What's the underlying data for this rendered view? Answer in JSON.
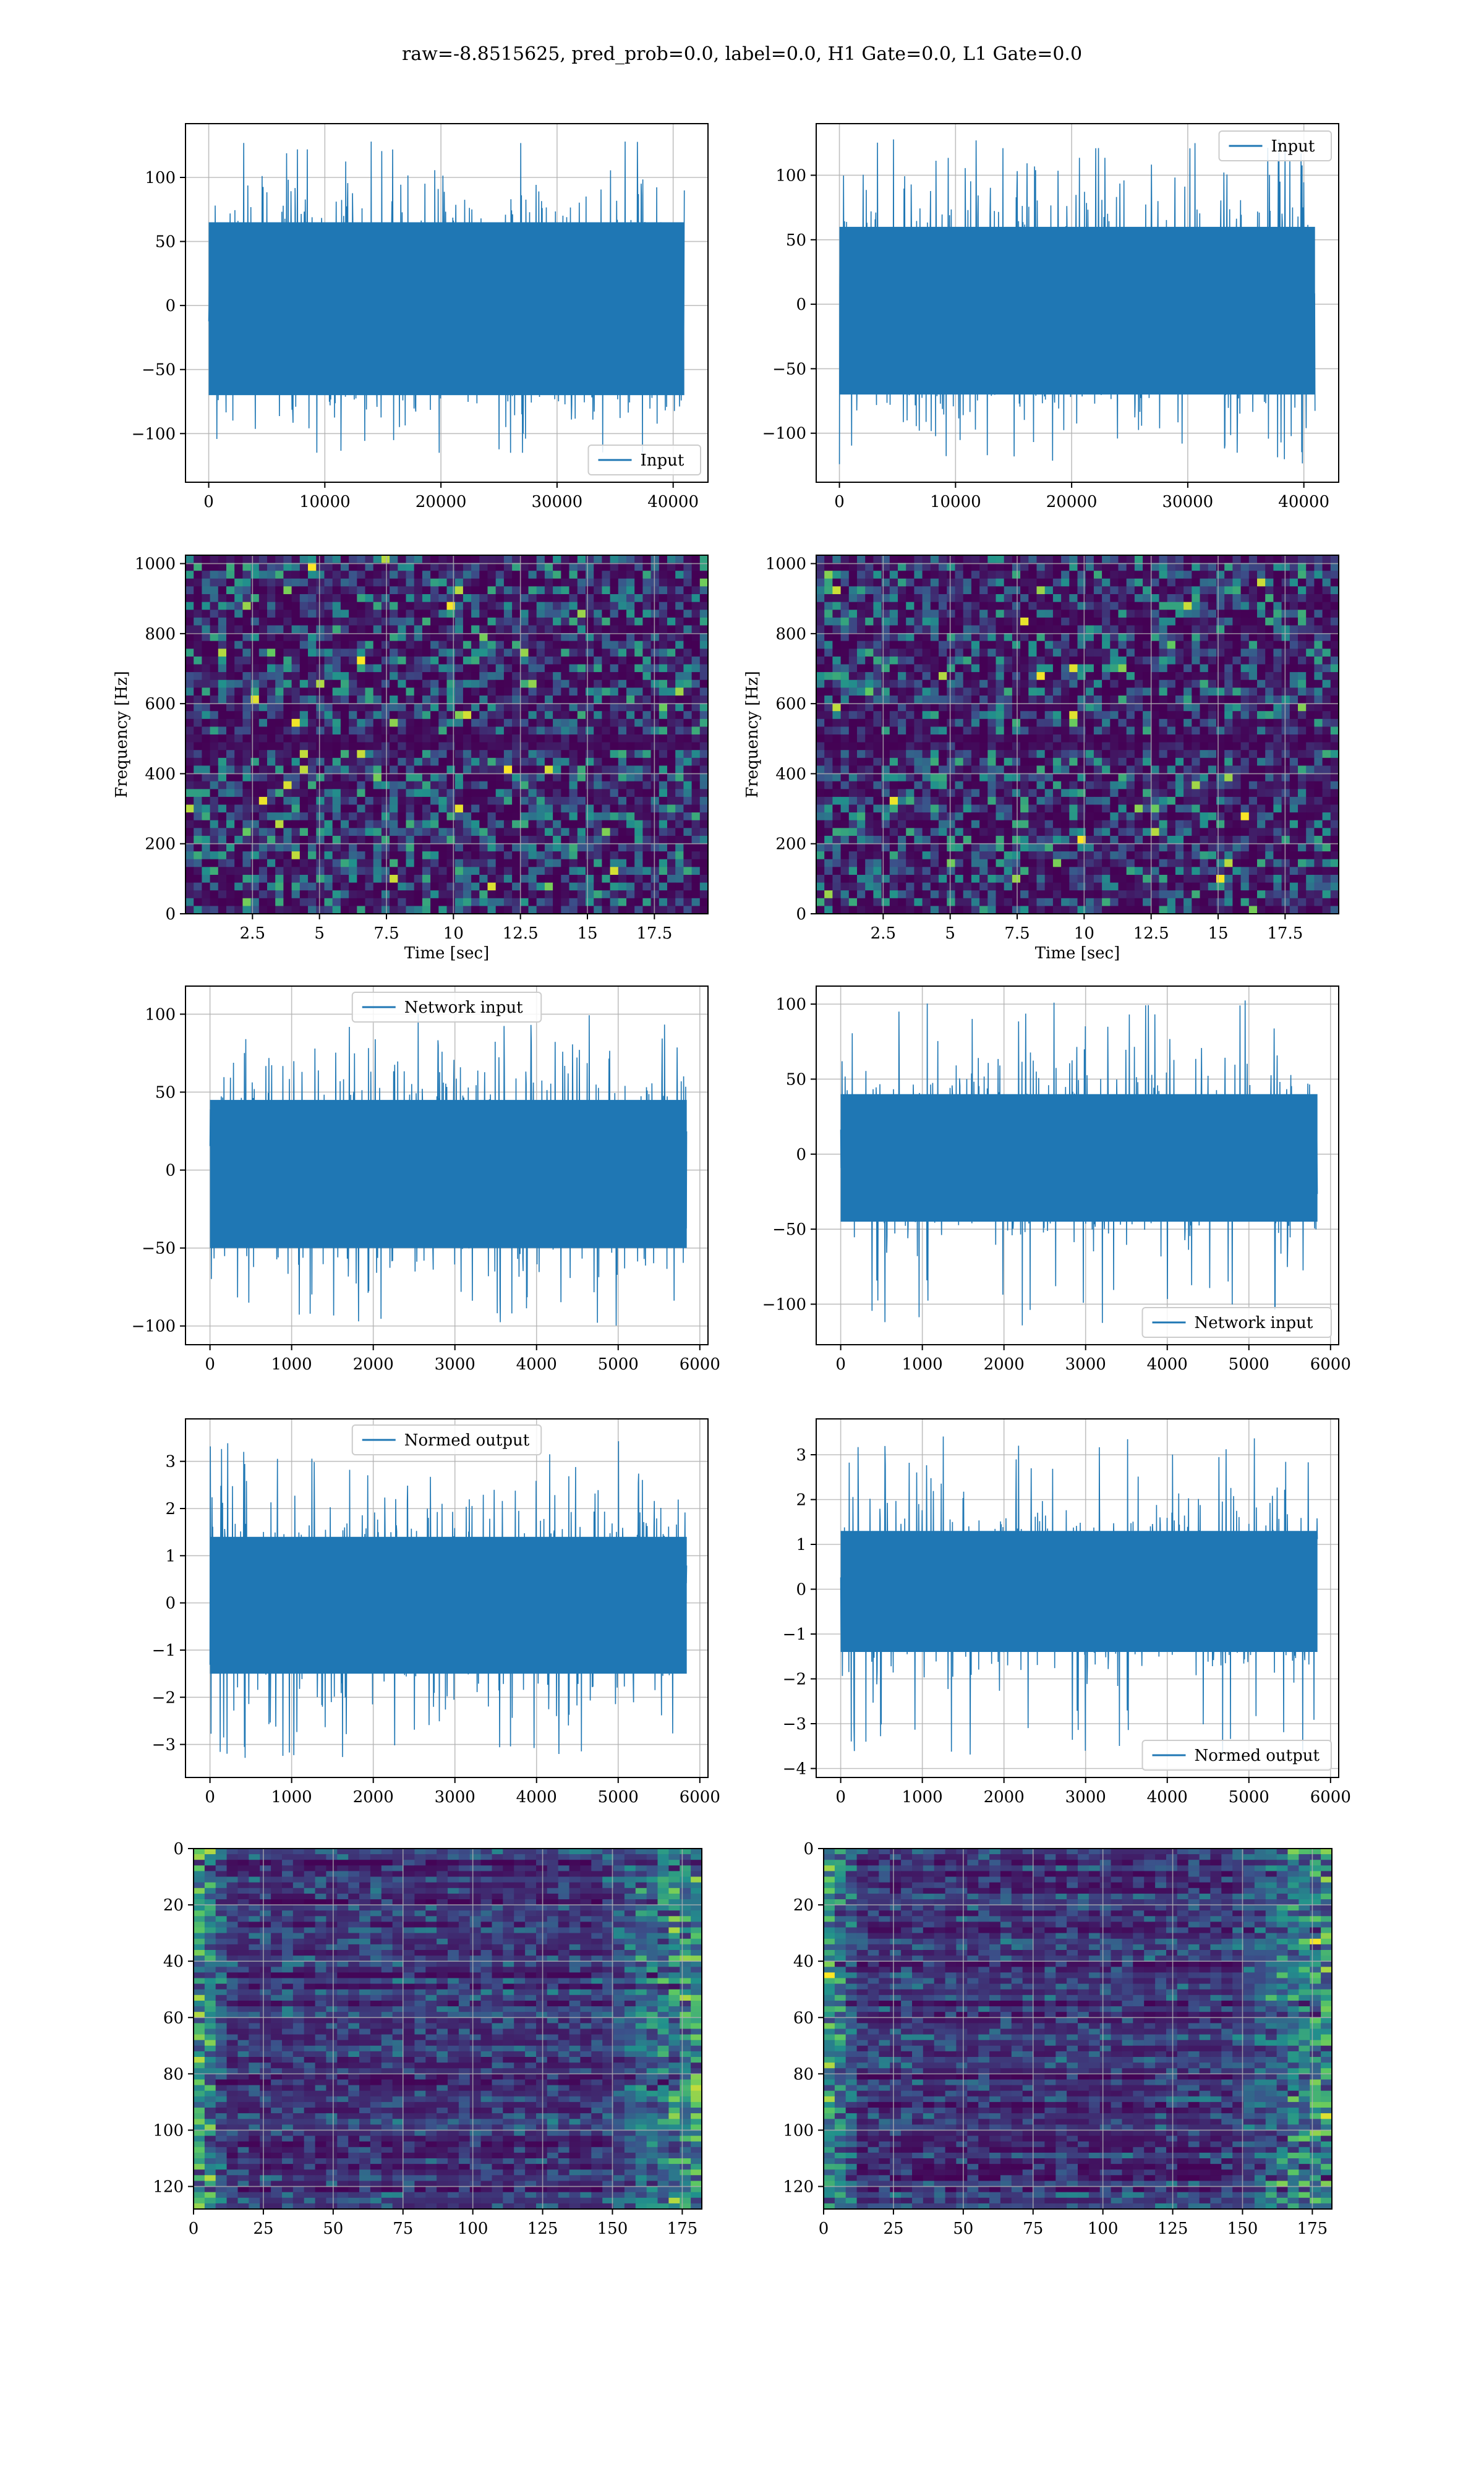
{
  "title": "raw=-8.8515625, pred_prob=0.0, label=0.0, H1 Gate=0.0, L1 Gate=0.0",
  "colors": {
    "line": "#1f77b4",
    "viridis_low": "#440154",
    "viridis_mid": "#21918c",
    "viridis_high": "#fde725",
    "grid": "#b0b0b0"
  },
  "chart_data": [
    {
      "id": "input-h1",
      "type": "line",
      "series": [
        {
          "name": "Input",
          "envelope_hi": 65,
          "envelope_lo": -70,
          "spike_max": 128,
          "spike_min": -115
        }
      ],
      "xlim": [
        -2000,
        43000
      ],
      "ylim": [
        -138,
        142
      ],
      "xticks": [
        0,
        10000,
        20000,
        30000,
        40000
      ],
      "yticks": [
        -100,
        -50,
        0,
        50,
        100
      ],
      "n_samples": 40960,
      "legend": "lower-right",
      "grid": true
    },
    {
      "id": "input-l1",
      "type": "line",
      "series": [
        {
          "name": "Input",
          "envelope_hi": 60,
          "envelope_lo": -70,
          "spike_max": 128,
          "spike_min": -124
        }
      ],
      "xlim": [
        -2000,
        43000
      ],
      "ylim": [
        -138,
        140
      ],
      "xticks": [
        0,
        10000,
        20000,
        30000,
        40000
      ],
      "yticks": [
        -100,
        -50,
        0,
        50,
        100
      ],
      "n_samples": 40960,
      "legend": "upper-right",
      "grid": true
    },
    {
      "id": "spectrogram-h1",
      "type": "heatmap",
      "xlabel": "Time [sec]",
      "ylabel": "Frequency [Hz]",
      "xlim": [
        0,
        19.5
      ],
      "ylim": [
        0,
        1024
      ],
      "xticks": [
        2.5,
        5.0,
        7.5,
        10.0,
        12.5,
        15.0,
        17.5
      ],
      "yticks": [
        0,
        200,
        400,
        600,
        800,
        1000
      ],
      "colormap": "viridis",
      "dark_band_hz": [
        470,
        510
      ],
      "grid": true
    },
    {
      "id": "spectrogram-l1",
      "type": "heatmap",
      "xlabel": "Time [sec]",
      "ylabel": "Frequency [Hz]",
      "xlim": [
        0,
        19.5
      ],
      "ylim": [
        0,
        1024
      ],
      "xticks": [
        2.5,
        5.0,
        7.5,
        10.0,
        12.5,
        15.0,
        17.5
      ],
      "yticks": [
        0,
        200,
        400,
        600,
        800,
        1000
      ],
      "colormap": "viridis",
      "dark_band_hz": [
        470,
        510
      ],
      "grid": true
    },
    {
      "id": "network-input-h1",
      "type": "line",
      "series": [
        {
          "name": "Network input",
          "envelope_hi": 45,
          "envelope_lo": -50,
          "spike_max": 102,
          "spike_min": -100
        }
      ],
      "xlim": [
        -300,
        6100
      ],
      "ylim": [
        -112,
        118
      ],
      "xticks": [
        0,
        1000,
        2000,
        3000,
        4000,
        5000,
        6000
      ],
      "yticks": [
        -100,
        -50,
        0,
        50,
        100
      ],
      "n_samples": 5840,
      "legend": "upper-center",
      "grid": true
    },
    {
      "id": "network-input-l1",
      "type": "line",
      "series": [
        {
          "name": "Network input",
          "envelope_hi": 40,
          "envelope_lo": -45,
          "spike_max": 105,
          "spike_min": -115
        }
      ],
      "xlim": [
        -300,
        6100
      ],
      "ylim": [
        -127,
        112
      ],
      "xticks": [
        0,
        1000,
        2000,
        3000,
        4000,
        5000,
        6000
      ],
      "yticks": [
        -100,
        -50,
        0,
        50,
        100
      ],
      "n_samples": 5840,
      "legend": "lower-right",
      "grid": true
    },
    {
      "id": "normed-output-h1",
      "type": "line",
      "series": [
        {
          "name": "Normed output",
          "envelope_hi": 1.4,
          "envelope_lo": -1.5,
          "spike_max": 3.5,
          "spike_min": -3.3
        }
      ],
      "xlim": [
        -300,
        6100
      ],
      "ylim": [
        -3.7,
        3.9
      ],
      "xticks": [
        0,
        1000,
        2000,
        3000,
        4000,
        5000,
        6000
      ],
      "yticks": [
        -3,
        -2,
        -1,
        0,
        1,
        2,
        3
      ],
      "n_samples": 5840,
      "legend": "upper-center",
      "grid": true
    },
    {
      "id": "normed-output-l1",
      "type": "line",
      "series": [
        {
          "name": "Normed output",
          "envelope_hi": 1.3,
          "envelope_lo": -1.4,
          "spike_max": 3.5,
          "spike_min": -3.7
        }
      ],
      "xlim": [
        -300,
        6100
      ],
      "ylim": [
        -4.2,
        3.8
      ],
      "xticks": [
        0,
        1000,
        2000,
        3000,
        4000,
        5000,
        6000
      ],
      "yticks": [
        -4,
        -3,
        -2,
        -1,
        0,
        1,
        2,
        3
      ],
      "n_samples": 5840,
      "legend": "lower-right",
      "grid": true
    },
    {
      "id": "feature-map-h1",
      "type": "heatmap",
      "xlim": [
        0,
        182
      ],
      "ylim": [
        128,
        0
      ],
      "xticks": [
        0,
        25,
        50,
        75,
        100,
        125,
        150,
        175
      ],
      "yticks": [
        0,
        20,
        40,
        60,
        80,
        100,
        120
      ],
      "colormap": "viridis",
      "rows": 128,
      "cols": 182,
      "grid": true
    },
    {
      "id": "feature-map-l1",
      "type": "heatmap",
      "xlim": [
        0,
        182
      ],
      "ylim": [
        128,
        0
      ],
      "xticks": [
        0,
        25,
        50,
        75,
        100,
        125,
        150,
        175
      ],
      "yticks": [
        0,
        20,
        40,
        60,
        80,
        100,
        120
      ],
      "colormap": "viridis",
      "rows": 128,
      "cols": 182,
      "grid": true
    }
  ]
}
